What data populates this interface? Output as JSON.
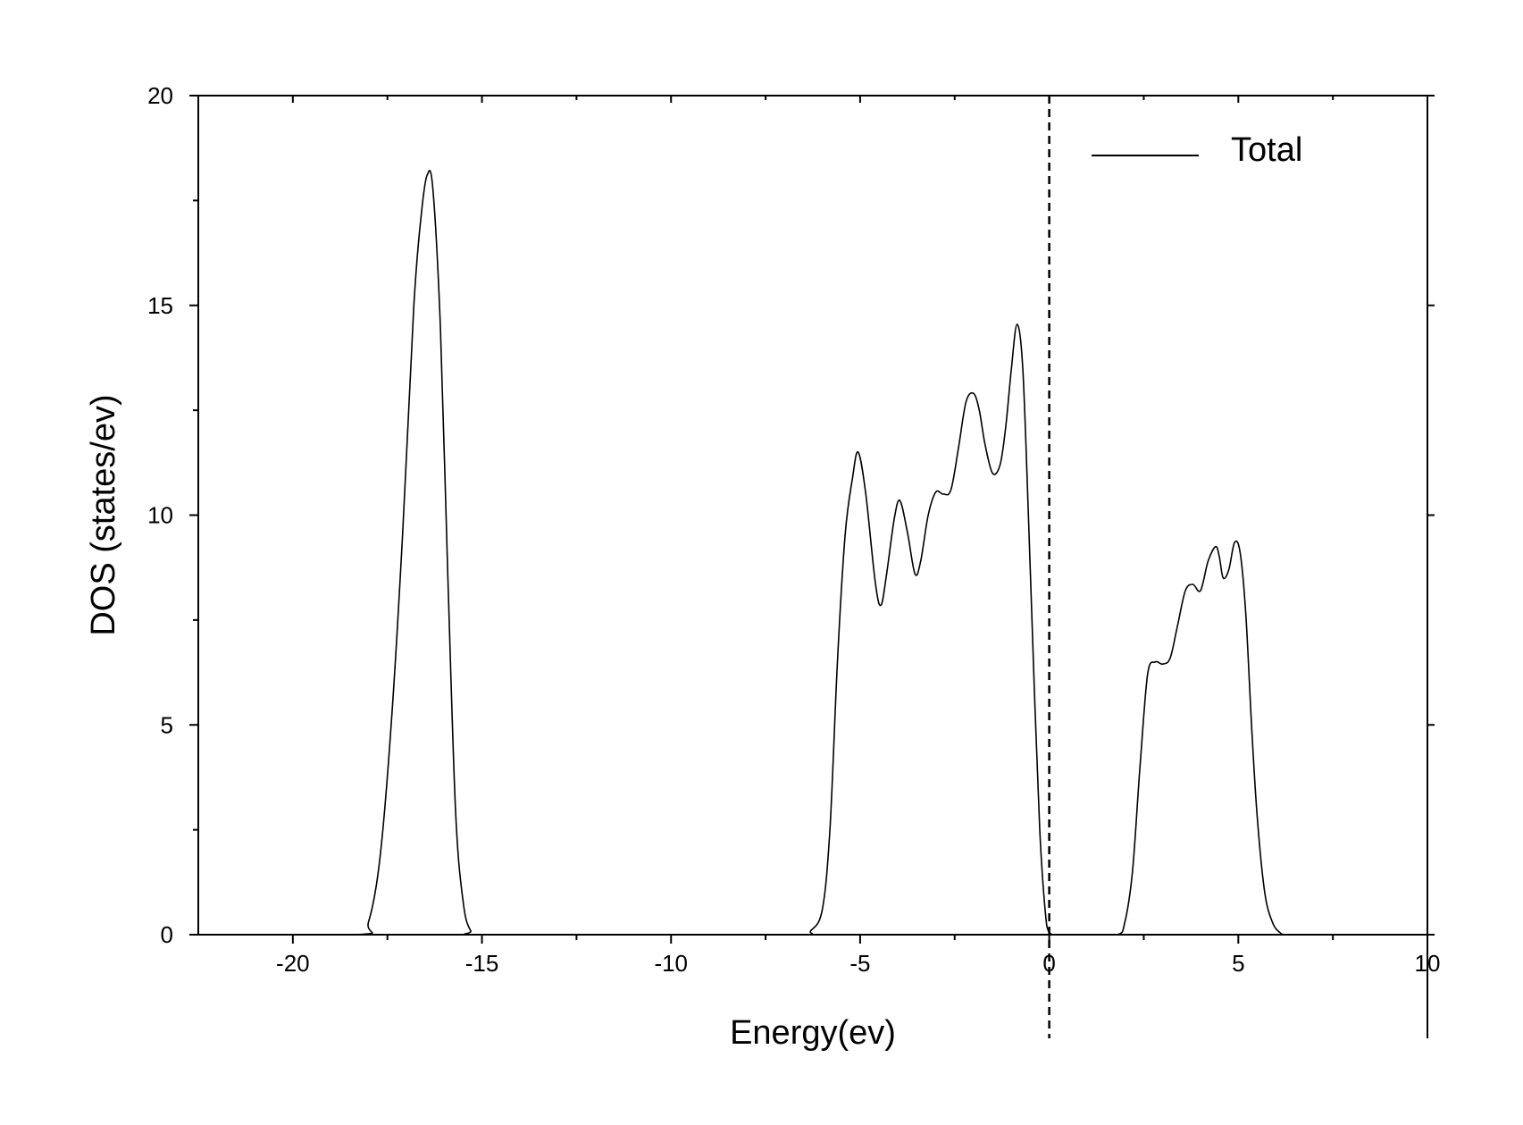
{
  "chart_data": {
    "type": "line",
    "title": "",
    "xlabel": "Energy(ev)",
    "ylabel": "DOS (states/ev)",
    "xlim": [
      -22.5,
      10
    ],
    "ylim": [
      0,
      20
    ],
    "x_ticks": [
      -20,
      -15,
      -10,
      -5,
      0,
      5,
      10
    ],
    "x_tick_labels": [
      "-20",
      "-15",
      "-10",
      "-5",
      "0",
      "5",
      "10"
    ],
    "y_ticks": [
      0,
      5,
      10,
      15,
      20
    ],
    "y_tick_labels": [
      "0",
      "5",
      "10",
      "15",
      "20"
    ],
    "grid": false,
    "legend": {
      "position": "top-right",
      "entries": [
        "Total"
      ]
    },
    "fermi_level": {
      "x": 0,
      "style": "dashed"
    },
    "series": [
      {
        "name": "Total",
        "color": "#000000",
        "x": [
          -22.5,
          -18.3,
          -18.0,
          -17.7,
          -17.4,
          -17.1,
          -16.8,
          -16.6,
          -16.45,
          -16.3,
          -16.1,
          -15.9,
          -15.7,
          -15.5,
          -15.3,
          -15.0,
          -10.0,
          -6.6,
          -6.3,
          -6.0,
          -5.8,
          -5.6,
          -5.4,
          -5.2,
          -5.05,
          -4.85,
          -4.6,
          -4.45,
          -4.3,
          -4.1,
          -3.95,
          -3.75,
          -3.55,
          -3.4,
          -3.2,
          -3.0,
          -2.8,
          -2.6,
          -2.4,
          -2.2,
          -2.0,
          -1.85,
          -1.7,
          -1.5,
          -1.3,
          -1.15,
          -1.0,
          -0.85,
          -0.7,
          -0.55,
          -0.4,
          -0.25,
          -0.1,
          0.0,
          0.15,
          0.3,
          0.5,
          0.7,
          1.0,
          1.8,
          2.0,
          2.2,
          2.4,
          2.6,
          2.8,
          3.0,
          3.2,
          3.4,
          3.6,
          3.8,
          4.0,
          4.2,
          4.4,
          4.5,
          4.6,
          4.75,
          4.9,
          5.05,
          5.2,
          5.35,
          5.5,
          5.7,
          5.9,
          6.1,
          6.3,
          7.0,
          10.0
        ],
        "y": [
          0,
          0,
          0.3,
          1.8,
          5.0,
          9.5,
          15.0,
          17.2,
          18.1,
          17.8,
          14.5,
          8.5,
          3.0,
          0.8,
          0.1,
          0,
          0,
          0,
          0.1,
          0.6,
          2.5,
          6.5,
          9.5,
          10.9,
          11.5,
          10.5,
          8.4,
          7.85,
          8.6,
          9.9,
          10.35,
          9.6,
          8.6,
          8.9,
          10.0,
          10.55,
          10.5,
          10.6,
          11.6,
          12.7,
          12.9,
          12.5,
          11.7,
          11.0,
          11.2,
          12.1,
          13.5,
          14.55,
          13.5,
          10.0,
          6.0,
          2.5,
          0.5,
          0.05,
          0,
          0,
          0,
          0,
          0,
          0,
          0.3,
          1.5,
          4.0,
          6.2,
          6.5,
          6.45,
          6.6,
          7.4,
          8.2,
          8.35,
          8.2,
          8.9,
          9.25,
          9.0,
          8.5,
          8.7,
          9.35,
          9.1,
          7.6,
          5.0,
          2.8,
          1.0,
          0.3,
          0.05,
          0,
          0,
          0
        ]
      }
    ]
  }
}
